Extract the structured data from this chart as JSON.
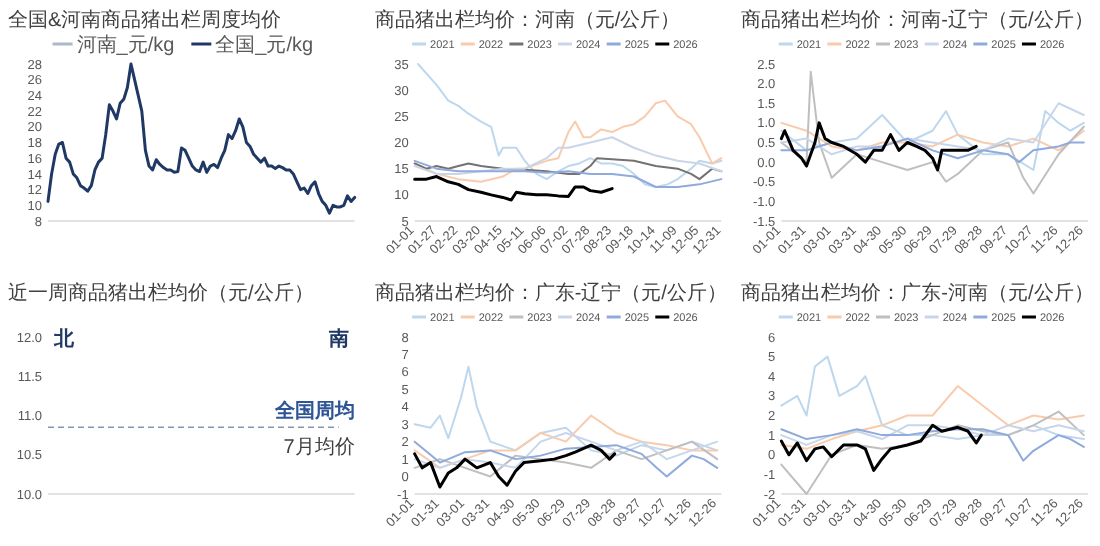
{
  "chart_data": [
    {
      "type": "line",
      "title": "全国&河南商品猪出栏周度均价",
      "legend": "top",
      "ylim": [
        8,
        28
      ],
      "yticks": [
        8,
        10,
        12,
        14,
        16,
        18,
        20,
        22,
        24,
        26,
        28
      ],
      "categories": [
        null,
        null,
        null,
        null,
        null,
        null,
        null,
        null,
        null,
        null,
        null,
        null,
        null,
        null,
        null,
        null,
        null,
        null,
        null,
        null,
        null,
        null,
        null,
        null,
        null,
        null,
        null,
        null,
        null,
        null,
        null,
        null,
        null,
        null,
        null,
        null,
        null,
        null,
        null,
        null,
        null,
        null,
        null,
        null,
        null,
        null,
        null,
        null,
        null,
        null,
        null,
        null,
        null,
        null,
        null,
        null,
        null,
        null,
        null,
        null,
        null,
        null,
        null,
        null,
        null,
        null,
        null,
        null,
        null,
        null,
        null,
        null,
        null,
        null,
        null,
        null,
        null,
        null,
        null,
        null,
        null,
        null,
        null,
        null,
        null,
        null
      ],
      "series": [
        {
          "name": "河南_元/kg",
          "color": "#adb9ca",
          "values": [
            null,
            null,
            null,
            null,
            null,
            null,
            null,
            null,
            null,
            null,
            null,
            null,
            null,
            null,
            null,
            null,
            null,
            null,
            null,
            null,
            null,
            null,
            null,
            null,
            null,
            null,
            null,
            null,
            null,
            null,
            null,
            null,
            null,
            null,
            null,
            null,
            null,
            null,
            null,
            null,
            null,
            null,
            null,
            null,
            null,
            null,
            null,
            null,
            null,
            null,
            null,
            null,
            null,
            null,
            null,
            null,
            null,
            null,
            null,
            null,
            null,
            null,
            null,
            null,
            null,
            null,
            null,
            null,
            null,
            null,
            null,
            null,
            null,
            null,
            null,
            null,
            null,
            null,
            null,
            null,
            null,
            null,
            null,
            null,
            null,
            null
          ]
        },
        {
          "name": "全国_元/kg",
          "color": "#1f3864",
          "values": [
            10.5,
            14,
            16.5,
            17.8,
            18,
            16,
            15.5,
            14,
            13.5,
            12.5,
            12.2,
            11.8,
            12.5,
            14.5,
            15.5,
            16,
            19,
            22.8,
            22,
            21,
            23,
            23.5,
            25,
            28,
            26,
            24,
            22,
            17,
            15,
            14.5,
            15.8,
            15.2,
            14.8,
            14.5,
            14.5,
            14.2,
            14.3,
            17.3,
            17,
            16,
            15,
            14.5,
            14.3,
            15.5,
            14.2,
            15,
            15.2,
            14.8,
            16,
            17,
            19,
            18.5,
            19.5,
            21,
            20,
            18,
            17.5,
            16.5,
            16,
            15.5,
            16,
            15,
            15,
            14.7,
            15,
            14.8,
            14.5,
            14.5,
            14,
            13,
            12,
            12.2,
            11.5,
            12.5,
            13,
            11.5,
            10.5,
            10,
            9,
            10,
            9.8,
            9.8,
            10,
            11.2,
            10.5,
            11
          ]
        }
      ]
    },
    {
      "type": "line",
      "title": "商品猪出栏均价：河南（元/公斤）",
      "legend": "top",
      "ylim": [
        5,
        35
      ],
      "yticks": [
        5,
        10,
        15,
        20,
        25,
        30,
        35
      ],
      "xlim": [
        "--01-01",
        "--12-31"
      ],
      "xticks": [
        {
          "value": "--01-01",
          "label": "01-01"
        },
        {
          "value": "--01-27",
          "label": "01-27"
        },
        {
          "value": "--02-22",
          "label": "02-22"
        },
        {
          "value": "--03-20",
          "label": "03-20"
        },
        {
          "value": "--04-15",
          "label": "04-15"
        },
        {
          "value": "--05-11",
          "label": "05-11"
        },
        {
          "value": "--06-06",
          "label": "06-06"
        },
        {
          "value": "--07-02",
          "label": "07-02"
        },
        {
          "value": "--07-28",
          "label": "07-28"
        },
        {
          "value": "--08-23",
          "label": "08-23"
        },
        {
          "value": "--09-18",
          "label": "09-18"
        },
        {
          "value": "--10-14",
          "label": "10-14"
        },
        {
          "value": "--11-09",
          "label": "11-09"
        },
        {
          "value": "--12-05",
          "label": "12-05"
        },
        {
          "value": "--12-31",
          "label": "12-31"
        }
      ],
      "series": [
        {
          "name": "2021",
          "color": "#bdd7ee",
          "x": [
            "--01-05",
            "--01-27",
            "--02-10",
            "--02-22",
            "--03-05",
            "--03-20",
            "--04-01",
            "--04-10",
            "--04-15",
            "--05-01",
            "--05-11",
            "--05-25",
            "--06-06",
            "--06-20",
            "--07-02",
            "--07-15",
            "--07-28",
            "--08-10",
            "--08-23",
            "--09-05",
            "--09-18",
            "--10-01",
            "--10-14",
            "--10-28",
            "--11-09",
            "--11-25",
            "--12-05",
            "--12-20",
            "--12-31"
          ],
          "values": [
            35,
            31,
            28,
            27,
            25.5,
            24,
            23,
            17.5,
            19,
            19,
            16.5,
            14,
            13,
            14.5,
            15.5,
            16,
            17,
            16,
            16,
            15.5,
            14,
            12,
            11.5,
            12,
            13,
            15,
            16.5,
            16,
            16.5
          ]
        },
        {
          "name": "2022",
          "color": "#f8cbad",
          "x": [
            "--01-01",
            "--01-27",
            "--02-22",
            "--03-20",
            "--04-15",
            "--05-01",
            "--05-11",
            "--06-06",
            "--06-20",
            "--07-02",
            "--07-10",
            "--07-20",
            "--07-28",
            "--08-10",
            "--08-23",
            "--09-05",
            "--09-18",
            "--10-01",
            "--10-14",
            "--10-25",
            "--11-09",
            "--11-25",
            "--12-05",
            "--12-20",
            "--12-31"
          ],
          "values": [
            16,
            14,
            13,
            12.5,
            13.5,
            15,
            15,
            16.5,
            17,
            22,
            24,
            21,
            21,
            22.5,
            22,
            23,
            23.5,
            25,
            27.5,
            28,
            25,
            23.5,
            21,
            16,
            17
          ]
        },
        {
          "name": "2023",
          "color": "#767171",
          "x": [
            "--01-01",
            "--01-15",
            "--01-27",
            "--02-10",
            "--02-22",
            "--03-05",
            "--03-20",
            "--04-15",
            "--05-11",
            "--06-06",
            "--07-02",
            "--07-15",
            "--07-28",
            "--08-05",
            "--08-23",
            "--09-18",
            "--10-14",
            "--11-09",
            "--11-25",
            "--12-05",
            "--12-20",
            "--12-31"
          ],
          "values": [
            16,
            15,
            15.5,
            15,
            15.5,
            16,
            15.5,
            15,
            14.8,
            14.5,
            14,
            14,
            15.5,
            17,
            16.8,
            16.5,
            15.5,
            15,
            14,
            13,
            15,
            14.5
          ]
        },
        {
          "name": "2024",
          "color": "#c9d6ea",
          "x": [
            "--01-01",
            "--01-27",
            "--02-22",
            "--03-20",
            "--04-15",
            "--05-11",
            "--06-06",
            "--06-20",
            "--07-02",
            "--07-28",
            "--08-23",
            "--09-18",
            "--10-14",
            "--11-09",
            "--12-05",
            "--12-31"
          ],
          "values": [
            15.5,
            14,
            14,
            14.5,
            15,
            15,
            17,
            19,
            19,
            20,
            21,
            19,
            17.5,
            16.5,
            16,
            14.5
          ]
        },
        {
          "name": "2025",
          "color": "#8faadc",
          "x": [
            "--01-01",
            "--01-27",
            "--02-22",
            "--03-20",
            "--04-15",
            "--05-11",
            "--06-06",
            "--07-02",
            "--07-28",
            "--08-23",
            "--09-18",
            "--10-14",
            "--11-09",
            "--12-05",
            "--12-31"
          ],
          "values": [
            16.5,
            15,
            14.5,
            14.5,
            14.5,
            14.5,
            14.2,
            14.5,
            14,
            14,
            13.5,
            11.5,
            11.5,
            12,
            13
          ]
        },
        {
          "name": "2026",
          "color": "#000000",
          "x": [
            "--01-01",
            "--01-15",
            "--01-27",
            "--02-10",
            "--02-22",
            "--03-05",
            "--03-20",
            "--04-01",
            "--04-15",
            "--04-25",
            "--05-01",
            "--05-11",
            "--05-25",
            "--06-06",
            "--06-20",
            "--07-02",
            "--07-10",
            "--07-20",
            "--07-28",
            "--08-10",
            "--08-23"
          ],
          "values": [
            13,
            13,
            13.5,
            12.5,
            12,
            11,
            10.5,
            10,
            9.5,
            9,
            10.5,
            10.2,
            10,
            10,
            9.8,
            9.7,
            11.5,
            11.5,
            10.8,
            10.5,
            11.2
          ]
        }
      ]
    },
    {
      "type": "line",
      "title": "商品猪出栏均价：河南-辽宁（元/公斤）",
      "legend": "top",
      "ylim": [
        -1.5,
        2.5
      ],
      "yticks": [
        {
          "value": -1.5,
          "label": "-1.5"
        },
        {
          "value": -1,
          "label": "-1.0"
        },
        {
          "value": -0.5,
          "label": "-0.5"
        },
        {
          "value": 0,
          "label": "0.0"
        },
        {
          "value": 0.5,
          "label": "0.5"
        },
        {
          "value": 1,
          "label": "1.0"
        },
        {
          "value": 1.5,
          "label": "1.5"
        },
        {
          "value": 2,
          "label": "2.0"
        },
        {
          "value": 2.5,
          "label": "2.5"
        }
      ],
      "xlim": [
        "--01-01",
        "--12-31"
      ],
      "xticks": [
        {
          "value": "--01-01",
          "label": "01-01"
        },
        {
          "value": "--01-31",
          "label": "01-31"
        },
        {
          "value": "--03-01",
          "label": "03-01"
        },
        {
          "value": "--03-31",
          "label": "03-31"
        },
        {
          "value": "--04-30",
          "label": "04-30"
        },
        {
          "value": "--05-30",
          "label": "05-30"
        },
        {
          "value": "--06-29",
          "label": "06-29"
        },
        {
          "value": "--07-29",
          "label": "07-29"
        },
        {
          "value": "--08-28",
          "label": "08-28"
        },
        {
          "value": "--09-27",
          "label": "09-27"
        },
        {
          "value": "--10-27",
          "label": "10-27"
        },
        {
          "value": "--11-26",
          "label": "11-26"
        },
        {
          "value": "--12-26",
          "label": "12-26"
        }
      ],
      "series": [
        {
          "name": "2021",
          "color": "#bdd7ee",
          "x": [
            "--01-01",
            "--01-31",
            "--03-01",
            "--03-31",
            "--04-30",
            "--05-30",
            "--06-29",
            "--07-15",
            "--07-29",
            "--08-28",
            "--09-27",
            "--10-27",
            "--11-10",
            "--11-26",
            "--12-10",
            "--12-26"
          ],
          "values": [
            0.8,
            0.3,
            0.5,
            0.6,
            1.2,
            0.5,
            0.8,
            1.3,
            0.7,
            0.2,
            0.2,
            -0.2,
            1.3,
            1,
            0.8,
            1
          ]
        },
        {
          "name": "2022",
          "color": "#f8cbad",
          "x": [
            "--01-01",
            "--01-31",
            "--03-01",
            "--03-31",
            "--04-30",
            "--05-30",
            "--06-29",
            "--07-29",
            "--08-28",
            "--09-27",
            "--10-27",
            "--11-26",
            "--12-26"
          ],
          "values": [
            1,
            0.8,
            0.4,
            0.3,
            0.5,
            0.5,
            0.4,
            0.7,
            0.5,
            0.4,
            0.6,
            0.3,
            0.8
          ]
        },
        {
          "name": "2023",
          "color": "#bfbfbf",
          "x": [
            "--01-01",
            "--01-31",
            "--02-05",
            "--02-15",
            "--03-01",
            "--03-31",
            "--04-30",
            "--05-30",
            "--06-29",
            "--07-15",
            "--07-29",
            "--08-28",
            "--09-27",
            "--10-15",
            "--10-27",
            "--11-05",
            "--11-26",
            "--12-26"
          ],
          "values": [
            0.5,
            0,
            2.3,
            0.5,
            -0.4,
            0.2,
            0,
            -0.2,
            0,
            -0.5,
            -0.3,
            0.3,
            0.5,
            -0.4,
            -0.8,
            -0.5,
            0.2,
            0.9
          ]
        },
        {
          "name": "2024",
          "color": "#c9d6ea",
          "x": [
            "--01-01",
            "--01-31",
            "--03-01",
            "--03-31",
            "--04-30",
            "--05-30",
            "--06-29",
            "--07-29",
            "--08-28",
            "--09-27",
            "--10-27",
            "--11-26",
            "--12-26"
          ],
          "values": [
            0.5,
            0.6,
            0.2,
            0.4,
            0.4,
            0.6,
            0.5,
            0.4,
            0.3,
            0.6,
            0.5,
            1.5,
            1.2
          ]
        },
        {
          "name": "2025",
          "color": "#8faadc",
          "x": [
            "--01-01",
            "--01-31",
            "--03-01",
            "--03-31",
            "--04-30",
            "--05-30",
            "--06-29",
            "--07-29",
            "--08-28",
            "--09-27",
            "--10-10",
            "--10-27",
            "--11-26",
            "--12-10",
            "--12-26"
          ],
          "values": [
            0.3,
            0.3,
            0.5,
            0.3,
            0.4,
            0.6,
            0.3,
            0.1,
            0.3,
            0.2,
            0,
            0.3,
            0.4,
            0.5,
            0.5
          ]
        },
        {
          "name": "2026",
          "color": "#000000",
          "x": [
            "--01-01",
            "--01-05",
            "--01-15",
            "--01-25",
            "--01-31",
            "--02-10",
            "--02-15",
            "--02-22",
            "--03-01",
            "--03-15",
            "--03-31",
            "--04-10",
            "--04-20",
            "--04-30",
            "--05-10",
            "--05-20",
            "--05-30",
            "--06-10",
            "--06-20",
            "--06-29",
            "--07-05",
            "--07-10",
            "--07-29",
            "--08-10",
            "--08-20"
          ],
          "values": [
            0.6,
            0.8,
            0.3,
            0.1,
            -0.1,
            0.5,
            1,
            0.6,
            0.5,
            0.4,
            0.2,
            0,
            0.3,
            0.3,
            0.7,
            0.3,
            0.5,
            0.4,
            0.3,
            0.1,
            -0.2,
            0.3,
            0.3,
            0.3,
            0.4
          ]
        }
      ]
    },
    {
      "type": "bar",
      "title": "近一周商品猪出栏均价（元/公斤）",
      "categories": [
        "北",
        "南"
      ],
      "values": [
        null,
        null
      ],
      "annotations": [
        {
          "text": "全国周均",
          "x": "南",
          "y": 10.85
        }
      ],
      "ylim": [
        10,
        12
      ],
      "yticks": [
        {
          "value": 10,
          "label": "10.0"
        },
        {
          "value": 10.5,
          "label": "10.5"
        },
        {
          "value": 11,
          "label": "11.0"
        },
        {
          "value": 11.5,
          "label": "11.5"
        },
        {
          "value": 12,
          "label": "12.0"
        }
      ],
      "ref_lines": [
        {
          "axis": "y",
          "value": 10.85,
          "label": "7月均价",
          "color": "#8497b0",
          "line_style": "dashed"
        }
      ]
    },
    {
      "type": "line",
      "title": "商品猪出栏均价：广东-辽宁（元/公斤）",
      "legend": "top",
      "ylim": [
        -1,
        8
      ],
      "yticks": [
        -1,
        0,
        1,
        2,
        3,
        4,
        5,
        6,
        7,
        8
      ],
      "xlim": [
        "--01-01",
        "--12-31"
      ],
      "xticks": [
        {
          "value": "--01-01",
          "label": "01-01"
        },
        {
          "value": "--01-31",
          "label": "01-31"
        },
        {
          "value": "--03-01",
          "label": "03-01"
        },
        {
          "value": "--03-31",
          "label": "03-31"
        },
        {
          "value": "--04-30",
          "label": "04-30"
        },
        {
          "value": "--05-30",
          "label": "05-30"
        },
        {
          "value": "--06-29",
          "label": "06-29"
        },
        {
          "value": "--07-29",
          "label": "07-29"
        },
        {
          "value": "--08-28",
          "label": "08-28"
        },
        {
          "value": "--09-27",
          "label": "09-27"
        },
        {
          "value": "--10-27",
          "label": "10-27"
        },
        {
          "value": "--11-26",
          "label": "11-26"
        },
        {
          "value": "--12-26",
          "label": "12-26"
        }
      ],
      "series": [
        {
          "name": "2021",
          "color": "#bdd7ee",
          "x": [
            "--01-01",
            "--01-20",
            "--01-31",
            "--02-10",
            "--02-25",
            "--03-05",
            "--03-15",
            "--03-31",
            "--04-30",
            "--05-30",
            "--06-29",
            "--07-29",
            "--08-28",
            "--09-27",
            "--10-27",
            "--11-26",
            "--12-26"
          ],
          "values": [
            3,
            2.8,
            3.5,
            2.2,
            4.5,
            6.3,
            4,
            2,
            1.5,
            2.5,
            2.8,
            1.5,
            1.2,
            1.8,
            1.5,
            2,
            1.5
          ]
        },
        {
          "name": "2022",
          "color": "#f8cbad",
          "x": [
            "--01-01",
            "--01-31",
            "--03-01",
            "--03-31",
            "--04-30",
            "--05-30",
            "--06-29",
            "--07-29",
            "--08-28",
            "--09-27",
            "--10-27",
            "--11-26",
            "--12-26"
          ],
          "values": [
            1.5,
            0.5,
            1,
            1.5,
            1.5,
            2.5,
            2,
            3.5,
            2.5,
            2,
            1.8,
            1.5,
            1.5
          ]
        },
        {
          "name": "2023",
          "color": "#bfbfbf",
          "x": [
            "--01-01",
            "--01-31",
            "--03-01",
            "--03-31",
            "--04-30",
            "--05-30",
            "--06-29",
            "--07-29",
            "--08-28",
            "--09-27",
            "--10-27",
            "--11-26",
            "--12-26"
          ],
          "values": [
            0.5,
            1,
            0.5,
            0,
            1.2,
            1,
            0.8,
            0.5,
            1.5,
            1,
            1.5,
            2,
            1
          ]
        },
        {
          "name": "2024",
          "color": "#c9d6ea",
          "x": [
            "--01-01",
            "--01-31",
            "--03-01",
            "--03-31",
            "--04-30",
            "--05-30",
            "--06-29",
            "--07-29",
            "--08-28",
            "--09-27",
            "--10-27",
            "--11-26",
            "--12-26"
          ],
          "values": [
            1,
            0.5,
            1,
            0.8,
            0.5,
            2,
            2.5,
            2,
            1.5,
            2,
            1,
            1.5,
            2
          ]
        },
        {
          "name": "2025",
          "color": "#8faadc",
          "x": [
            "--01-01",
            "--01-31",
            "--03-01",
            "--03-31",
            "--04-30",
            "--05-30",
            "--06-29",
            "--07-29",
            "--08-28",
            "--09-27",
            "--10-15",
            "--10-27",
            "--11-26",
            "--12-10",
            "--12-26"
          ],
          "values": [
            2,
            0.8,
            1.4,
            1.5,
            1,
            1.2,
            1.6,
            1.7,
            1.8,
            1.3,
            0.5,
            0,
            1.2,
            1,
            0.5
          ]
        },
        {
          "name": "2026",
          "color": "#000000",
          "x": [
            "--01-01",
            "--01-10",
            "--01-20",
            "--01-31",
            "--02-10",
            "--02-20",
            "--03-01",
            "--03-15",
            "--03-31",
            "--04-10",
            "--04-20",
            "--04-30",
            "--05-10",
            "--05-30",
            "--06-15",
            "--06-29",
            "--07-10",
            "--07-29",
            "--08-10",
            "--08-20",
            "--08-26"
          ],
          "values": [
            1.3,
            0.5,
            0.8,
            -0.6,
            0.2,
            0.5,
            1,
            0.5,
            0.8,
            0,
            -0.5,
            0.3,
            0.8,
            0.9,
            1,
            1.2,
            1.4,
            1.8,
            1.5,
            1,
            1.3
          ]
        }
      ]
    },
    {
      "type": "line",
      "title": "商品猪出栏均价：广东-河南（元/公斤）",
      "legend": "top",
      "ylim": [
        -2,
        6
      ],
      "yticks": [
        -2,
        -1,
        0,
        1,
        2,
        3,
        4,
        5,
        6
      ],
      "xlim": [
        "--01-01",
        "--12-31"
      ],
      "xticks": [
        {
          "value": "--01-01",
          "label": "01-01"
        },
        {
          "value": "--01-31",
          "label": "01-31"
        },
        {
          "value": "--03-01",
          "label": "03-01"
        },
        {
          "value": "--03-31",
          "label": "03-31"
        },
        {
          "value": "--04-30",
          "label": "04-30"
        },
        {
          "value": "--05-30",
          "label": "05-30"
        },
        {
          "value": "--06-29",
          "label": "06-29"
        },
        {
          "value": "--07-29",
          "label": "07-29"
        },
        {
          "value": "--08-28",
          "label": "08-28"
        },
        {
          "value": "--09-27",
          "label": "09-27"
        },
        {
          "value": "--10-27",
          "label": "10-27"
        },
        {
          "value": "--11-26",
          "label": "11-26"
        },
        {
          "value": "--12-26",
          "label": "12-26"
        }
      ],
      "series": [
        {
          "name": "2021",
          "color": "#bdd7ee",
          "x": [
            "--01-01",
            "--01-20",
            "--01-31",
            "--02-10",
            "--02-25",
            "--03-10",
            "--03-31",
            "--04-10",
            "--04-30",
            "--05-30",
            "--06-29",
            "--07-29",
            "--08-28",
            "--09-27",
            "--10-27",
            "--11-26",
            "--12-26"
          ],
          "values": [
            2.5,
            3,
            2,
            4.5,
            5,
            3,
            3.5,
            4,
            1.5,
            1,
            1,
            0.8,
            1,
            1,
            1.5,
            1,
            0.8
          ]
        },
        {
          "name": "2022",
          "color": "#f8cbad",
          "x": [
            "--01-01",
            "--01-31",
            "--03-01",
            "--03-31",
            "--04-30",
            "--05-30",
            "--06-29",
            "--07-29",
            "--08-28",
            "--09-27",
            "--10-27",
            "--11-26",
            "--12-26"
          ],
          "values": [
            0.5,
            0.3,
            0.8,
            1.2,
            1.5,
            2,
            2,
            3.5,
            2.5,
            1.5,
            2,
            1.8,
            2
          ]
        },
        {
          "name": "2023",
          "color": "#bfbfbf",
          "x": [
            "--01-01",
            "--01-31",
            "--03-01",
            "--03-31",
            "--04-30",
            "--05-30",
            "--06-29",
            "--07-29",
            "--08-28",
            "--09-27",
            "--10-27",
            "--11-26",
            "--12-26"
          ],
          "values": [
            -0.5,
            -2,
            0,
            0.5,
            0.3,
            0.5,
            1,
            1.5,
            1.2,
            1,
            1.5,
            2.2,
            1
          ]
        },
        {
          "name": "2024",
          "color": "#c9d6ea",
          "x": [
            "--01-01",
            "--01-31",
            "--03-01",
            "--03-31",
            "--04-30",
            "--05-30",
            "--06-29",
            "--07-29",
            "--08-28",
            "--09-27",
            "--10-27",
            "--11-26",
            "--12-26"
          ],
          "values": [
            1,
            0.5,
            1,
            1.2,
            0.8,
            1.5,
            1.5,
            1.3,
            1,
            1.5,
            1.2,
            1.5,
            1.2
          ]
        },
        {
          "name": "2025",
          "color": "#8faadc",
          "x": [
            "--01-01",
            "--01-31",
            "--03-01",
            "--03-31",
            "--04-30",
            "--05-30",
            "--06-29",
            "--07-29",
            "--08-28",
            "--09-27",
            "--10-15",
            "--10-27",
            "--11-26",
            "--12-10",
            "--12-26"
          ],
          "values": [
            1.3,
            0.8,
            1,
            1.3,
            1,
            1,
            1.2,
            1.3,
            1.3,
            1,
            -0.3,
            0.2,
            1,
            0.8,
            0.4
          ]
        },
        {
          "name": "2026",
          "color": "#000000",
          "x": [
            "--01-01",
            "--01-10",
            "--01-20",
            "--01-31",
            "--02-10",
            "--02-20",
            "--03-01",
            "--03-15",
            "--03-31",
            "--04-10",
            "--04-20",
            "--04-30",
            "--05-10",
            "--05-30",
            "--06-15",
            "--06-29",
            "--07-10",
            "--07-29",
            "--08-10",
            "--08-20",
            "--08-26"
          ],
          "values": [
            0.7,
            0,
            0.6,
            -0.3,
            0.3,
            0.4,
            -0.1,
            0.5,
            0.5,
            0.3,
            -0.8,
            -0.2,
            0.3,
            0.5,
            0.7,
            1.5,
            1.2,
            1.4,
            1.2,
            0.6,
            1
          ]
        }
      ]
    }
  ]
}
